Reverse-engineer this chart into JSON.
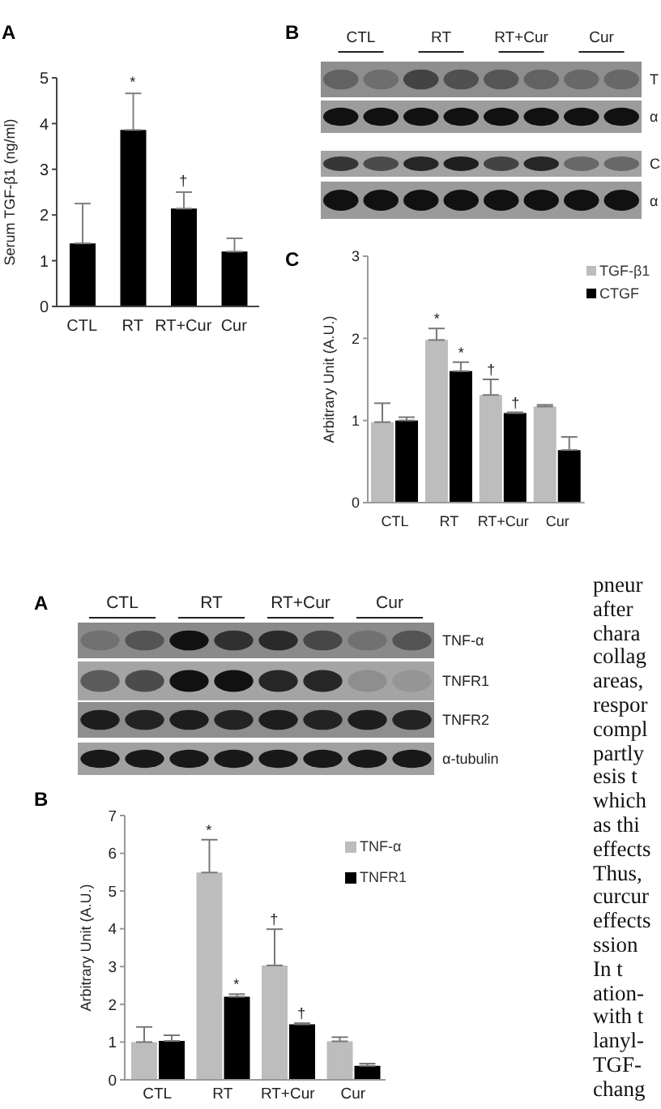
{
  "chart_data": [
    {
      "type": "bar",
      "title": "A",
      "ylabel": "Serum TGF-β1 (ng/ml)",
      "categories": [
        "CTL",
        "RT",
        "RT+Cur",
        "Cur"
      ],
      "values": [
        1.38,
        3.86,
        2.14,
        1.2
      ],
      "color": "#000000",
      "errors": [
        [
          1.38,
          2.25
        ],
        [
          3.86,
          4.66
        ],
        [
          2.14,
          2.5
        ],
        [
          1.2,
          1.49
        ]
      ],
      "ylim": [
        0,
        5
      ],
      "yticks": [
        0,
        1,
        2,
        3,
        4,
        5
      ],
      "annotations": [
        {
          "text": "*",
          "x": "RT",
          "y": 4.66
        },
        {
          "text": "†",
          "x": "RT+Cur",
          "y": 2.5
        }
      ]
    },
    {
      "type": "other",
      "title": "B",
      "categories": [
        "CTL",
        "RT",
        "RT+Cur",
        "Cur"
      ],
      "y_categories": [
        "T",
        "α",
        "C",
        "α"
      ]
    },
    {
      "type": "bar",
      "title": "C",
      "ylabel": "Arbitrary Unit (A.U.)",
      "categories": [
        "CTL",
        "RT",
        "RT+Cur",
        "Cur"
      ],
      "series": [
        {
          "name": "TGF-β1",
          "color": "#bdbdbd",
          "values": [
            0.98,
            1.98,
            1.31,
            1.17
          ],
          "errors": [
            [
              0.98,
              1.21
            ],
            [
              1.98,
              2.12
            ],
            [
              1.31,
              1.5
            ],
            [
              1.17,
              1.19
            ]
          ]
        },
        {
          "name": "CTGF",
          "color": "#000000",
          "values": [
            1.0,
            1.6,
            1.09,
            0.64
          ],
          "errors": [
            [
              1.0,
              1.04
            ],
            [
              1.6,
              1.71
            ],
            [
              1.09,
              1.1
            ],
            [
              0.64,
              0.8
            ]
          ]
        }
      ],
      "ylim": [
        0,
        3
      ],
      "yticks": [
        0,
        1,
        2,
        3
      ],
      "legend": "top right",
      "annotations": [
        {
          "text": "*",
          "x": "RT",
          "y": 2.12
        },
        {
          "text": "*",
          "x": "RT",
          "y": 1.71
        },
        {
          "text": "†",
          "x": "RT+Cur",
          "y": 1.5
        },
        {
          "text": "†",
          "x": "RT+Cur",
          "y": 1.1
        }
      ]
    },
    {
      "type": "other",
      "title": "A",
      "categories": [
        "CTL",
        "RT",
        "RT+Cur",
        "Cur"
      ],
      "y_categories": [
        "TNF-α",
        "TNFR1",
        "TNFR2",
        "α-tubulin"
      ]
    },
    {
      "type": "bar",
      "title": "B",
      "ylabel": "Arbitrary Unit (A.U.)",
      "categories": [
        "CTL",
        "RT",
        "RT+Cur",
        "Cur"
      ],
      "series": [
        {
          "name": "TNF-α",
          "color": "#bdbdbd",
          "values": [
            1.0,
            5.49,
            3.03,
            1.02
          ],
          "errors": [
            [
              1.0,
              1.4
            ],
            [
              5.49,
              6.36
            ],
            [
              3.03,
              3.99
            ],
            [
              1.02,
              1.13
            ]
          ]
        },
        {
          "name": "TNFR1",
          "color": "#000000",
          "values": [
            1.03,
            2.2,
            1.47,
            0.37
          ],
          "errors": [
            [
              1.03,
              1.18
            ],
            [
              2.2,
              2.27
            ],
            [
              1.47,
              1.5
            ],
            [
              0.37,
              0.43
            ]
          ]
        }
      ],
      "ylim": [
        0,
        7
      ],
      "yticks": [
        0,
        1,
        2,
        3,
        4,
        5,
        6,
        7
      ],
      "legend": "top right",
      "annotations": [
        {
          "text": "*",
          "x": "RT",
          "y": 6.36
        },
        {
          "text": "*",
          "x": "RT",
          "y": 2.27
        },
        {
          "text": "†",
          "x": "RT+Cur",
          "y": 3.99
        },
        {
          "text": "†",
          "x": "RT+Cur",
          "y": 1.5
        }
      ]
    },
    {
      "type": "other",
      "annotations": [
        "pneur",
        "after",
        "chara",
        "collag",
        "areas,",
        "respor",
        "compl",
        "partly",
        "esis t",
        "which",
        "as thi",
        "effects",
        "Thus,",
        "curcur",
        "effects",
        "ssion",
        "In t",
        "ation-",
        "with t",
        "lanyl-",
        "TGF-",
        "chang"
      ]
    }
  ]
}
